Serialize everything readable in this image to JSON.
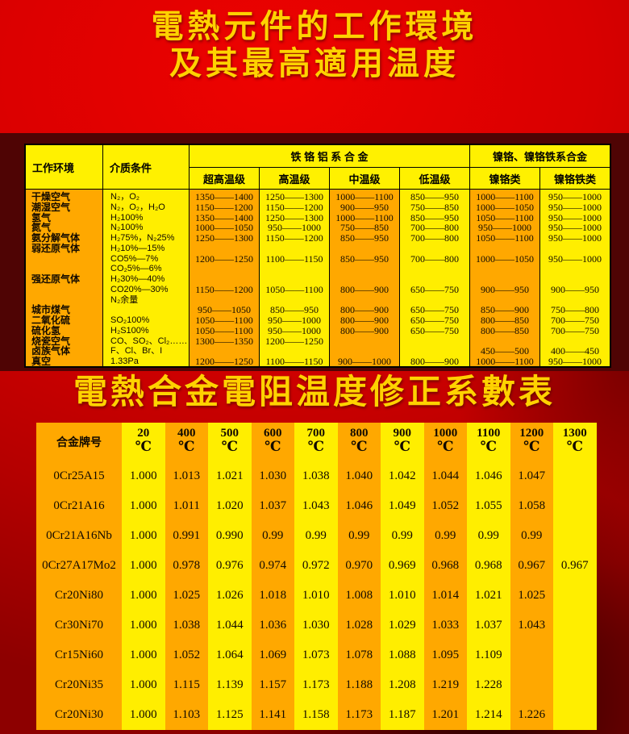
{
  "page": {
    "title1_line1": "電熱元件的工作環境",
    "title1_line2": "及其最高適用温度",
    "title2": "電熱合金電阻温度修正系數表"
  },
  "colors": {
    "background_red": "#d90000",
    "band_maroon": "#4f0404",
    "table_orange": "#ffa800",
    "table_yellow": "#ffee00",
    "header_yellow": "#fff100",
    "title_gold": "#ffd200",
    "text_black": "#120a00"
  },
  "env_table": {
    "header": {
      "col_env": "工作环境",
      "col_medium": "介质条件",
      "group_fecral": "铁 铬 铝 系 合 金",
      "group_nicr": "镍铬、镍铬铁系合金",
      "sub_cols": [
        "超高温级",
        "高温级",
        "中温级",
        "低温级",
        "镍铬类",
        "镍铬铁类"
      ]
    },
    "lines": [
      [
        "干燥空气",
        "N₂，O₂",
        "1350——1400",
        "1250——1300",
        "1000——1100",
        "850——950",
        "1000——1100",
        "950——1000"
      ],
      [
        "潮湿空气",
        "N₂，O₂，H₂O",
        "1150——1200",
        "1150——1200",
        "900——950",
        "750——850",
        "1000——1050",
        "950——1000"
      ],
      [
        "氢气",
        "H₂100%",
        "1350——1400",
        "1250——1300",
        "1000——1100",
        "850——950",
        "1050——1100",
        "950——1000"
      ],
      [
        "氮气",
        "N₂100%",
        "1000——1050",
        "950——1000",
        "750——850",
        "700——800",
        "950——1000",
        "950——1000"
      ],
      [
        "氨分解气体",
        "H₂75%，N₂25%",
        "1250——1300",
        "1150——1200",
        "850——950",
        "700——800",
        "1050——1100",
        "950——1000"
      ],
      [
        "弱还原气体",
        "H₂10%—15%",
        "",
        "",
        "",
        "",
        "",
        ""
      ],
      [
        "",
        "CO5%—7%",
        "1200——1250",
        "1100——1150",
        "850——950",
        "700——800",
        "1000——1050",
        "950——1000"
      ],
      [
        "",
        "CO₂5%—6%",
        "",
        "",
        "",
        "",
        "",
        ""
      ],
      [
        "强还原气体",
        "H₂30%—40%",
        "",
        "",
        "",
        "",
        "",
        ""
      ],
      [
        "",
        "CO20%—30%",
        "1150——1200",
        "1050——1100",
        "800——900",
        "650——750",
        "900——950",
        "900——950"
      ],
      [
        "",
        "N₂余量",
        "",
        "",
        "",
        "",
        "",
        ""
      ],
      [
        "城市煤气",
        "",
        "950——1050",
        "850——950",
        "800——900",
        "650——750",
        "850——900",
        "750——800"
      ],
      [
        "二氧化硫",
        "SO₂100%",
        "1050——1100",
        "950——1000",
        "800——900",
        "650——750",
        "800——850",
        "700——750"
      ],
      [
        "硫化氢",
        "H₂S100%",
        "1050——1100",
        "950——1000",
        "800——900",
        "650——750",
        "800——850",
        "700——750"
      ],
      [
        "烧瓷空气",
        "CO、SO₂、Cl₂……",
        "1300——1350",
        "1200——1250",
        "",
        "",
        "",
        ""
      ],
      [
        "卤族气体",
        "F、Cl、Br、I",
        "",
        "",
        "",
        "",
        "450——500",
        "400——450"
      ],
      [
        "真空",
        "1.33Pa",
        "1200——1250",
        "1100——1150",
        "900——1000",
        "800——900",
        "1000——1100",
        "950——1000"
      ]
    ]
  },
  "coeff_table": {
    "name_header": "合金牌号",
    "degree_symbol": "℃",
    "temps": [
      "20",
      "400",
      "500",
      "600",
      "700",
      "800",
      "900",
      "1000",
      "1100",
      "1200",
      "1300"
    ],
    "rows": [
      {
        "name": "0Cr25A15",
        "values": [
          "1.000",
          "1.013",
          "1.021",
          "1.030",
          "1.038",
          "1.040",
          "1.042",
          "1.044",
          "1.046",
          "1.047",
          ""
        ]
      },
      {
        "name": "0Cr21A16",
        "values": [
          "1.000",
          "1.011",
          "1.020",
          "1.037",
          "1.043",
          "1.046",
          "1.049",
          "1.052",
          "1.055",
          "1.058",
          ""
        ]
      },
      {
        "name": "0Cr21A16Nb",
        "values": [
          "1.000",
          "0.991",
          "0.990",
          "0.99",
          "0.99",
          "0.99",
          "0.99",
          "0.99",
          "0.99",
          "0.99",
          ""
        ]
      },
      {
        "name": "0Cr27A17Mo2",
        "values": [
          "1.000",
          "0.978",
          "0.976",
          "0.974",
          "0.972",
          "0.970",
          "0.969",
          "0.968",
          "0.968",
          "0.967",
          "0.967"
        ]
      },
      {
        "name": "Cr20Ni80",
        "values": [
          "1.000",
          "1.025",
          "1.026",
          "1.018",
          "1.010",
          "1.008",
          "1.010",
          "1.014",
          "1.021",
          "1.025",
          ""
        ]
      },
      {
        "name": "Cr30Ni70",
        "values": [
          "1.000",
          "1.038",
          "1.044",
          "1.036",
          "1.030",
          "1.028",
          "1.029",
          "1.033",
          "1.037",
          "1.043",
          ""
        ]
      },
      {
        "name": "Cr15Ni60",
        "values": [
          "1.000",
          "1.052",
          "1.064",
          "1.069",
          "1.073",
          "1.078",
          "1.088",
          "1.095",
          "1.109",
          "",
          ""
        ]
      },
      {
        "name": "Cr20Ni35",
        "values": [
          "1.000",
          "1.115",
          "1.139",
          "1.157",
          "1.173",
          "1.188",
          "1.208",
          "1.219",
          "1.228",
          "",
          ""
        ]
      },
      {
        "name": "Cr20Ni30",
        "values": [
          "1.000",
          "1.103",
          "1.125",
          "1.141",
          "1.158",
          "1.173",
          "1.187",
          "1.201",
          "1.214",
          "1.226",
          ""
        ]
      }
    ]
  }
}
